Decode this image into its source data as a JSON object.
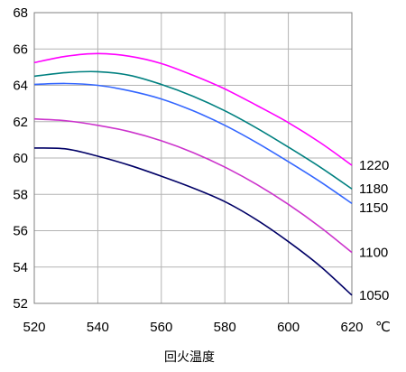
{
  "chart_data": {
    "type": "line",
    "title": "",
    "xlabel": "回火温度",
    "ylabel": "",
    "x_unit": "℃",
    "xlim": [
      520,
      620
    ],
    "ylim": [
      52,
      68
    ],
    "x_ticks": [
      520,
      540,
      560,
      580,
      600,
      620
    ],
    "y_ticks": [
      52,
      54,
      56,
      58,
      60,
      62,
      64,
      66,
      68
    ],
    "grid": true,
    "legend": "labels at right end of each line",
    "series": [
      {
        "name": "1220",
        "color": "#ff00ff",
        "x": [
          520,
          530,
          540,
          550,
          560,
          570,
          580,
          590,
          600,
          610,
          620
        ],
        "y": [
          65.25,
          65.6,
          65.75,
          65.6,
          65.2,
          64.55,
          63.8,
          62.9,
          61.95,
          60.85,
          59.6
        ]
      },
      {
        "name": "1180",
        "color": "#008080",
        "x": [
          520,
          530,
          540,
          550,
          560,
          570,
          580,
          590,
          600,
          610,
          620
        ],
        "y": [
          64.5,
          64.7,
          64.75,
          64.55,
          64.05,
          63.4,
          62.6,
          61.65,
          60.6,
          59.5,
          58.3
        ]
      },
      {
        "name": "1150",
        "color": "#3366ff",
        "x": [
          520,
          530,
          540,
          550,
          560,
          570,
          580,
          590,
          600,
          610,
          620
        ],
        "y": [
          64.05,
          64.1,
          64.0,
          63.7,
          63.25,
          62.6,
          61.8,
          60.85,
          59.8,
          58.7,
          57.5
        ]
      },
      {
        "name": "1100",
        "color": "#cc33cc",
        "x": [
          520,
          530,
          540,
          550,
          560,
          570,
          580,
          590,
          600,
          610,
          620
        ],
        "y": [
          62.15,
          62.05,
          61.8,
          61.45,
          60.95,
          60.3,
          59.5,
          58.55,
          57.45,
          56.2,
          54.8
        ]
      },
      {
        "name": "1050",
        "color": "#000066",
        "x": [
          520,
          530,
          540,
          550,
          560,
          570,
          580,
          590,
          600,
          610,
          620
        ],
        "y": [
          60.55,
          60.5,
          60.1,
          59.6,
          59.0,
          58.35,
          57.6,
          56.6,
          55.4,
          54.05,
          52.45
        ]
      }
    ]
  }
}
